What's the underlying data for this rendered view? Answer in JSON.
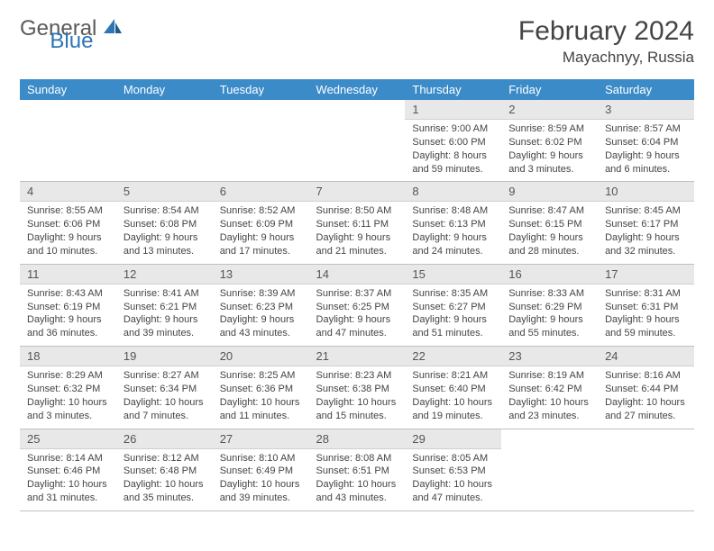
{
  "logo": {
    "part1": "General",
    "part2": "Blue"
  },
  "title": "February 2024",
  "location": "Mayachnyy, Russia",
  "colors": {
    "header_bg": "#3b8bc9",
    "header_text": "#ffffff",
    "daynum_bg": "#e8e8e8",
    "border": "#bfbfbf",
    "logo_gray": "#5a5a5a",
    "logo_blue": "#2e75b6"
  },
  "weekdays": [
    "Sunday",
    "Monday",
    "Tuesday",
    "Wednesday",
    "Thursday",
    "Friday",
    "Saturday"
  ],
  "grid": [
    [
      {
        "n": "",
        "sr": "",
        "ss": "",
        "dl": ""
      },
      {
        "n": "",
        "sr": "",
        "ss": "",
        "dl": ""
      },
      {
        "n": "",
        "sr": "",
        "ss": "",
        "dl": ""
      },
      {
        "n": "",
        "sr": "",
        "ss": "",
        "dl": ""
      },
      {
        "n": "1",
        "sr": "Sunrise: 9:00 AM",
        "ss": "Sunset: 6:00 PM",
        "dl": "Daylight: 8 hours and 59 minutes."
      },
      {
        "n": "2",
        "sr": "Sunrise: 8:59 AM",
        "ss": "Sunset: 6:02 PM",
        "dl": "Daylight: 9 hours and 3 minutes."
      },
      {
        "n": "3",
        "sr": "Sunrise: 8:57 AM",
        "ss": "Sunset: 6:04 PM",
        "dl": "Daylight: 9 hours and 6 minutes."
      }
    ],
    [
      {
        "n": "4",
        "sr": "Sunrise: 8:55 AM",
        "ss": "Sunset: 6:06 PM",
        "dl": "Daylight: 9 hours and 10 minutes."
      },
      {
        "n": "5",
        "sr": "Sunrise: 8:54 AM",
        "ss": "Sunset: 6:08 PM",
        "dl": "Daylight: 9 hours and 13 minutes."
      },
      {
        "n": "6",
        "sr": "Sunrise: 8:52 AM",
        "ss": "Sunset: 6:09 PM",
        "dl": "Daylight: 9 hours and 17 minutes."
      },
      {
        "n": "7",
        "sr": "Sunrise: 8:50 AM",
        "ss": "Sunset: 6:11 PM",
        "dl": "Daylight: 9 hours and 21 minutes."
      },
      {
        "n": "8",
        "sr": "Sunrise: 8:48 AM",
        "ss": "Sunset: 6:13 PM",
        "dl": "Daylight: 9 hours and 24 minutes."
      },
      {
        "n": "9",
        "sr": "Sunrise: 8:47 AM",
        "ss": "Sunset: 6:15 PM",
        "dl": "Daylight: 9 hours and 28 minutes."
      },
      {
        "n": "10",
        "sr": "Sunrise: 8:45 AM",
        "ss": "Sunset: 6:17 PM",
        "dl": "Daylight: 9 hours and 32 minutes."
      }
    ],
    [
      {
        "n": "11",
        "sr": "Sunrise: 8:43 AM",
        "ss": "Sunset: 6:19 PM",
        "dl": "Daylight: 9 hours and 36 minutes."
      },
      {
        "n": "12",
        "sr": "Sunrise: 8:41 AM",
        "ss": "Sunset: 6:21 PM",
        "dl": "Daylight: 9 hours and 39 minutes."
      },
      {
        "n": "13",
        "sr": "Sunrise: 8:39 AM",
        "ss": "Sunset: 6:23 PM",
        "dl": "Daylight: 9 hours and 43 minutes."
      },
      {
        "n": "14",
        "sr": "Sunrise: 8:37 AM",
        "ss": "Sunset: 6:25 PM",
        "dl": "Daylight: 9 hours and 47 minutes."
      },
      {
        "n": "15",
        "sr": "Sunrise: 8:35 AM",
        "ss": "Sunset: 6:27 PM",
        "dl": "Daylight: 9 hours and 51 minutes."
      },
      {
        "n": "16",
        "sr": "Sunrise: 8:33 AM",
        "ss": "Sunset: 6:29 PM",
        "dl": "Daylight: 9 hours and 55 minutes."
      },
      {
        "n": "17",
        "sr": "Sunrise: 8:31 AM",
        "ss": "Sunset: 6:31 PM",
        "dl": "Daylight: 9 hours and 59 minutes."
      }
    ],
    [
      {
        "n": "18",
        "sr": "Sunrise: 8:29 AM",
        "ss": "Sunset: 6:32 PM",
        "dl": "Daylight: 10 hours and 3 minutes."
      },
      {
        "n": "19",
        "sr": "Sunrise: 8:27 AM",
        "ss": "Sunset: 6:34 PM",
        "dl": "Daylight: 10 hours and 7 minutes."
      },
      {
        "n": "20",
        "sr": "Sunrise: 8:25 AM",
        "ss": "Sunset: 6:36 PM",
        "dl": "Daylight: 10 hours and 11 minutes."
      },
      {
        "n": "21",
        "sr": "Sunrise: 8:23 AM",
        "ss": "Sunset: 6:38 PM",
        "dl": "Daylight: 10 hours and 15 minutes."
      },
      {
        "n": "22",
        "sr": "Sunrise: 8:21 AM",
        "ss": "Sunset: 6:40 PM",
        "dl": "Daylight: 10 hours and 19 minutes."
      },
      {
        "n": "23",
        "sr": "Sunrise: 8:19 AM",
        "ss": "Sunset: 6:42 PM",
        "dl": "Daylight: 10 hours and 23 minutes."
      },
      {
        "n": "24",
        "sr": "Sunrise: 8:16 AM",
        "ss": "Sunset: 6:44 PM",
        "dl": "Daylight: 10 hours and 27 minutes."
      }
    ],
    [
      {
        "n": "25",
        "sr": "Sunrise: 8:14 AM",
        "ss": "Sunset: 6:46 PM",
        "dl": "Daylight: 10 hours and 31 minutes."
      },
      {
        "n": "26",
        "sr": "Sunrise: 8:12 AM",
        "ss": "Sunset: 6:48 PM",
        "dl": "Daylight: 10 hours and 35 minutes."
      },
      {
        "n": "27",
        "sr": "Sunrise: 8:10 AM",
        "ss": "Sunset: 6:49 PM",
        "dl": "Daylight: 10 hours and 39 minutes."
      },
      {
        "n": "28",
        "sr": "Sunrise: 8:08 AM",
        "ss": "Sunset: 6:51 PM",
        "dl": "Daylight: 10 hours and 43 minutes."
      },
      {
        "n": "29",
        "sr": "Sunrise: 8:05 AM",
        "ss": "Sunset: 6:53 PM",
        "dl": "Daylight: 10 hours and 47 minutes."
      },
      {
        "n": "",
        "sr": "",
        "ss": "",
        "dl": ""
      },
      {
        "n": "",
        "sr": "",
        "ss": "",
        "dl": ""
      }
    ]
  ]
}
